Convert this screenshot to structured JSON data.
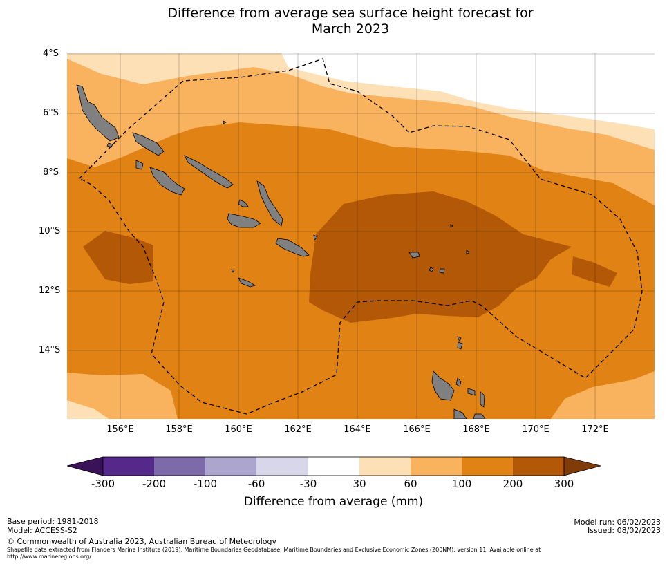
{
  "title_line1": "Difference from average sea surface height forecast for",
  "title_line2": "March 2023",
  "lat_labels": [
    "4°S",
    "6°S",
    "8°S",
    "10°S",
    "12°S",
    "14°S"
  ],
  "lon_labels": [
    "156°E",
    "158°E",
    "160°E",
    "162°E",
    "164°E",
    "166°E",
    "168°E",
    "170°E",
    "172°E"
  ],
  "colorbar": {
    "ticks": [
      "-300",
      "-200",
      "-100",
      "-60",
      "-30",
      "30",
      "60",
      "100",
      "200",
      "300"
    ],
    "colors": [
      "#3a1258",
      "#55298a",
      "#7d6aa8",
      "#aca5ce",
      "#d8d7e9",
      "#ffffff",
      "#fde0b6",
      "#f9b35f",
      "#e08214",
      "#b35806",
      "#7f3b08"
    ],
    "title": "Difference from average (mm)"
  },
  "map_colors": {
    "c30_60": "#fde0b6",
    "c60_100": "#f9b35f",
    "c100_200": "#e08214",
    "c200_300": "#b35806",
    "land": "#808080"
  },
  "footer": {
    "base_period": "Base period: 1981-2018",
    "model": "Model: ACCESS-S2",
    "model_run": "Model run: 06/02/2023",
    "issued": "Issued: 08/02/2023",
    "copyright": "© Commonwealth of Australia 2023, Australian Bureau of Meteorology",
    "shapefile_line1": "Shapefile data extracted from Flanders Marine Institute (2019), Maritime Boundaries Geodatabase: Maritime Boundaries and Exclusive Economic Zones (200NM), version 11. Available online at",
    "shapefile_line2": "http://www.marineregions.org/."
  }
}
